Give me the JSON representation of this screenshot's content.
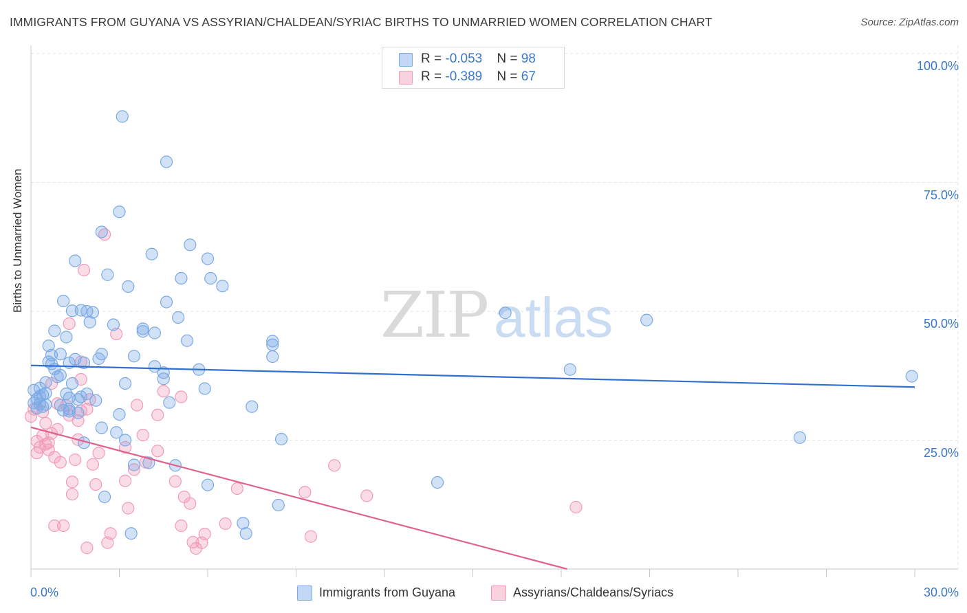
{
  "title": "IMMIGRANTS FROM GUYANA VS ASSYRIAN/CHALDEAN/SYRIAC BIRTHS TO UNMARRIED WOMEN CORRELATION CHART",
  "source": "Source: ZipAtlas.com",
  "watermark": {
    "zip": "ZIP",
    "atlas": "atlas"
  },
  "legend_top": {
    "rows": [
      {
        "r_label": "R = ",
        "r_value": "-0.053",
        "n_label": "N = ",
        "n_value": "98",
        "color": "#7aa9e6"
      },
      {
        "r_label": "R = ",
        "r_value": "-0.389",
        "n_label": "N = ",
        "n_value": "67",
        "color": "#f29bb8"
      }
    ]
  },
  "legend_bottom": {
    "items": [
      {
        "label": "Immigrants from Guyana",
        "color": "#7aa9e6"
      },
      {
        "label": "Assyrians/Chaldeans/Syriacs",
        "color": "#f29bb8"
      }
    ]
  },
  "chart_data": {
    "type": "scatter",
    "title": "IMMIGRANTS FROM GUYANA VS ASSYRIAN/CHALDEAN/SYRIAC BIRTHS TO UNMARRIED WOMEN CORRELATION CHART",
    "xlabel": "",
    "ylabel": "Births to Unmarried Women",
    "xlim": [
      0,
      30
    ],
    "ylim": [
      0,
      100
    ],
    "x_tick_labels": [
      "0.0%",
      "30.0%"
    ],
    "y_tick_labels": [
      "100.0%",
      "75.0%",
      "50.0%",
      "25.0%"
    ],
    "y_ticks": [
      100,
      75,
      50,
      25
    ],
    "grid": true,
    "legend_position": "top-center",
    "series": [
      {
        "name": "Immigrants from Guyana",
        "color": "#7aa9e6",
        "line_color": "#2f6fd0",
        "trend": {
          "x": [
            0,
            30
          ],
          "y": [
            39.5,
            35.3
          ]
        },
        "points": [
          [
            0.1,
            34.7
          ],
          [
            0.1,
            32.2
          ],
          [
            0.2,
            33.0
          ],
          [
            0.2,
            31.2
          ],
          [
            0.3,
            35.1
          ],
          [
            0.3,
            33.5
          ],
          [
            0.3,
            32.0
          ],
          [
            0.4,
            33.8
          ],
          [
            0.4,
            31.5
          ],
          [
            0.5,
            36.2
          ],
          [
            0.5,
            34.1
          ],
          [
            0.5,
            31.9
          ],
          [
            0.6,
            43.3
          ],
          [
            0.6,
            40.2
          ],
          [
            0.7,
            41.5
          ],
          [
            0.7,
            39.8
          ],
          [
            0.8,
            46.2
          ],
          [
            0.8,
            38.8
          ],
          [
            0.9,
            37.3
          ],
          [
            1.0,
            41.7
          ],
          [
            1.0,
            37.6
          ],
          [
            1.0,
            31.8
          ],
          [
            1.1,
            52.0
          ],
          [
            1.1,
            30.8
          ],
          [
            1.2,
            45.0
          ],
          [
            1.2,
            34.0
          ],
          [
            1.3,
            40.0
          ],
          [
            1.3,
            33.2
          ],
          [
            1.3,
            30.6
          ],
          [
            1.3,
            31.0
          ],
          [
            1.4,
            50.1
          ],
          [
            1.4,
            36.0
          ],
          [
            1.5,
            59.8
          ],
          [
            1.5,
            40.7
          ],
          [
            1.6,
            32.9
          ],
          [
            1.6,
            30.3
          ],
          [
            1.7,
            50.2
          ],
          [
            1.7,
            33.4
          ],
          [
            1.8,
            24.5
          ],
          [
            1.8,
            40.0
          ],
          [
            1.9,
            50.0
          ],
          [
            1.9,
            34.0
          ],
          [
            2.0,
            47.9
          ],
          [
            2.1,
            49.8
          ],
          [
            2.2,
            32.7
          ],
          [
            2.3,
            40.8
          ],
          [
            2.4,
            27.4
          ],
          [
            2.4,
            41.7
          ],
          [
            2.4,
            65.4
          ],
          [
            2.5,
            14.0
          ],
          [
            2.6,
            57.1
          ],
          [
            2.8,
            47.4
          ],
          [
            2.9,
            26.5
          ],
          [
            3.0,
            30.0
          ],
          [
            3.0,
            69.3
          ],
          [
            3.1,
            87.8
          ],
          [
            3.2,
            25.0
          ],
          [
            3.2,
            36.0
          ],
          [
            3.3,
            54.8
          ],
          [
            3.4,
            6.9
          ],
          [
            3.5,
            41.3
          ],
          [
            3.5,
            20.2
          ],
          [
            3.8,
            46.1
          ],
          [
            3.8,
            46.6
          ],
          [
            4.0,
            20.6
          ],
          [
            4.1,
            61.1
          ],
          [
            4.2,
            39.3
          ],
          [
            4.2,
            45.8
          ],
          [
            4.5,
            38.1
          ],
          [
            4.5,
            36.9
          ],
          [
            4.6,
            79.0
          ],
          [
            4.6,
            51.8
          ],
          [
            4.7,
            32.3
          ],
          [
            4.9,
            20.1
          ],
          [
            5.0,
            48.8
          ],
          [
            5.1,
            56.4
          ],
          [
            5.3,
            44.3
          ],
          [
            5.4,
            62.9
          ],
          [
            5.7,
            38.7
          ],
          [
            5.9,
            35.0
          ],
          [
            6.0,
            60.2
          ],
          [
            6.0,
            16.3
          ],
          [
            6.1,
            56.4
          ],
          [
            6.5,
            54.9
          ],
          [
            7.2,
            8.9
          ],
          [
            7.3,
            6.9
          ],
          [
            7.5,
            31.5
          ],
          [
            8.2,
            41.2
          ],
          [
            8.2,
            43.5
          ],
          [
            8.2,
            44.2
          ],
          [
            8.4,
            12.4
          ],
          [
            8.5,
            25.2
          ],
          [
            13.8,
            16.8
          ],
          [
            16.1,
            49.7
          ],
          [
            18.3,
            38.7
          ],
          [
            20.9,
            48.3
          ],
          [
            26.1,
            25.5
          ],
          [
            29.9,
            37.4
          ]
        ]
      },
      {
        "name": "Assyrians/Chaldeans/Syriacs",
        "color": "#f29bb8",
        "line_color": "#e0628e",
        "trend": {
          "x": [
            0,
            18.2
          ],
          "y": [
            27.5,
            0
          ]
        },
        "points": [
          [
            0.0,
            29.6
          ],
          [
            0.1,
            31.0
          ],
          [
            0.2,
            24.8
          ],
          [
            0.2,
            22.5
          ],
          [
            0.3,
            23.6
          ],
          [
            0.4,
            30.5
          ],
          [
            0.4,
            25.9
          ],
          [
            0.5,
            28.3
          ],
          [
            0.5,
            24.2
          ],
          [
            0.6,
            23.1
          ],
          [
            0.6,
            24.5
          ],
          [
            0.7,
            36.0
          ],
          [
            0.7,
            26.3
          ],
          [
            0.8,
            8.4
          ],
          [
            0.8,
            21.7
          ],
          [
            0.9,
            27.1
          ],
          [
            0.9,
            32.1
          ],
          [
            1.0,
            20.7
          ],
          [
            1.1,
            8.4
          ],
          [
            1.2,
            31.7
          ],
          [
            1.3,
            29.8
          ],
          [
            1.3,
            47.6
          ],
          [
            1.4,
            16.9
          ],
          [
            1.4,
            14.5
          ],
          [
            1.5,
            21.2
          ],
          [
            1.6,
            25.1
          ],
          [
            1.6,
            28.8
          ],
          [
            1.7,
            40.2
          ],
          [
            1.7,
            30.7
          ],
          [
            1.7,
            36.8
          ],
          [
            1.8,
            58.0
          ],
          [
            1.9,
            31.0
          ],
          [
            1.9,
            4.1
          ],
          [
            2.0,
            32.9
          ],
          [
            2.1,
            20.3
          ],
          [
            2.2,
            16.4
          ],
          [
            2.3,
            22.5
          ],
          [
            2.5,
            64.9
          ],
          [
            2.6,
            5.1
          ],
          [
            2.7,
            6.9
          ],
          [
            2.9,
            45.6
          ],
          [
            3.2,
            17.1
          ],
          [
            3.2,
            23.6
          ],
          [
            3.3,
            11.8
          ],
          [
            3.5,
            19.3
          ],
          [
            3.6,
            31.8
          ],
          [
            3.8,
            26.0
          ],
          [
            3.9,
            20.7
          ],
          [
            4.3,
            22.9
          ],
          [
            4.3,
            29.9
          ],
          [
            4.5,
            34.5
          ],
          [
            4.9,
            17.0
          ],
          [
            5.1,
            33.4
          ],
          [
            5.1,
            8.4
          ],
          [
            5.2,
            14.0
          ],
          [
            5.4,
            12.7
          ],
          [
            5.5,
            5.2
          ],
          [
            5.6,
            4.0
          ],
          [
            5.8,
            5.1
          ],
          [
            5.9,
            6.8
          ],
          [
            6.6,
            8.8
          ],
          [
            7.0,
            15.6
          ],
          [
            9.3,
            14.9
          ],
          [
            9.5,
            6.3
          ],
          [
            10.3,
            20.1
          ],
          [
            11.4,
            14.2
          ],
          [
            18.5,
            12.0
          ]
        ]
      }
    ]
  }
}
